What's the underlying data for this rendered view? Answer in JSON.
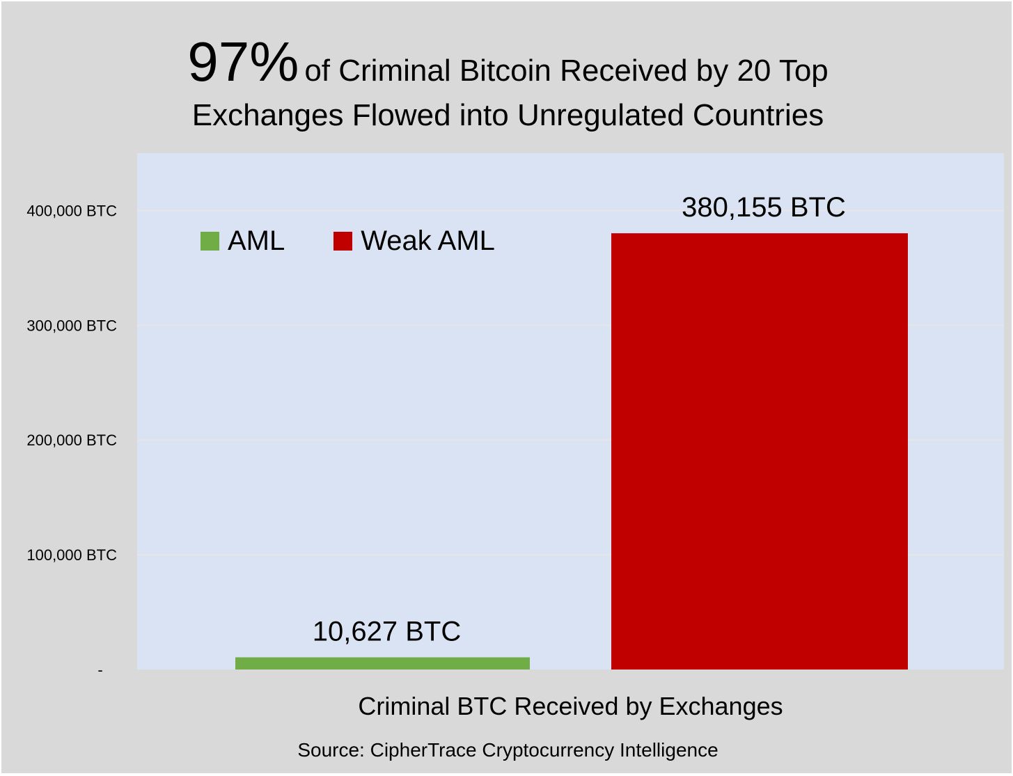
{
  "title": {
    "highlight": "97%",
    "line1_rest": "of Criminal Bitcoin Received by 20 Top",
    "line2": "Exchanges Flowed into Unregulated Countries"
  },
  "source": "Source: CipherTrace Cryptocurrency Intelligence",
  "colors": {
    "background": "#d9d9d9",
    "plot_area": "#dae3f3",
    "gridline": "#e6e6e6",
    "aml": "#70ad47",
    "weak_aml": "#c00000"
  },
  "chart_data": {
    "type": "bar",
    "title": "97% of Criminal Bitcoin Received by 20 Top Exchanges Flowed into Unregulated Countries",
    "xlabel": "Criminal BTC Received by Exchanges",
    "ylabel": "",
    "ylim": [
      0,
      450000
    ],
    "yticks": [
      0,
      100000,
      200000,
      300000,
      400000
    ],
    "ytick_labels": [
      "-",
      "100,000 BTC",
      "200,000 BTC",
      "300,000 BTC",
      "400,000 BTC"
    ],
    "grid": true,
    "legend_position": "top-left",
    "categories": [
      "Criminal BTC Received by Exchanges"
    ],
    "series": [
      {
        "name": "AML",
        "color": "#70ad47",
        "values": [
          10627
        ],
        "data_label": "10,627 BTC"
      },
      {
        "name": "Weak AML",
        "color": "#c00000",
        "values": [
          380155
        ],
        "data_label": "380,155 BTC"
      }
    ]
  }
}
